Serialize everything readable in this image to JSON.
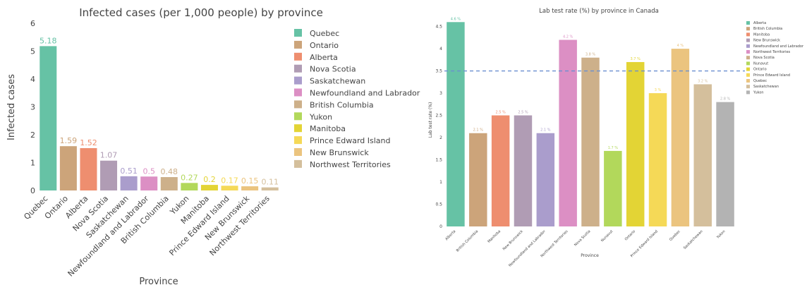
{
  "chart_data": [
    {
      "type": "bar",
      "title": "Infected cases (per 1,000 people) by province",
      "xlabel": "Province",
      "ylabel": "Infected cases",
      "ylim": [
        0,
        6
      ],
      "yticks": [
        "0",
        "1",
        "2",
        "3",
        "4",
        "5",
        "6"
      ],
      "grid": false,
      "legend_position": "right",
      "categories": [
        "Quebec",
        "Ontario",
        "Alberta",
        "Nova Scotia",
        "Saskatchewan",
        "Newfoundland and Labrador",
        "British Columbia",
        "Yukon",
        "Manitoba",
        "Prince Edward Island",
        "New Brunswick",
        "Northwest Territories"
      ],
      "values": [
        5.18,
        1.59,
        1.52,
        1.07,
        0.51,
        0.5,
        0.48,
        0.27,
        0.2,
        0.17,
        0.15,
        0.11
      ],
      "value_labels": [
        "5.18",
        "1.59",
        "1.52",
        "1.07",
        "0.51",
        "0.5",
        "0.48",
        "0.27",
        "0.2",
        "0.17",
        "0.15",
        "0.11"
      ],
      "colors": [
        "#66c2a5",
        "#cca47a",
        "#ee8e6f",
        "#b09cb4",
        "#aa9dcc",
        "#dc8fc4",
        "#cdb08a",
        "#b2d85b",
        "#e3d435",
        "#f5d957",
        "#ebc47f",
        "#d4bf9c"
      ],
      "legend": [
        "Quebec",
        "Ontario",
        "Alberta",
        "Nova Scotia",
        "Saskatchewan",
        "Newfoundland and Labrador",
        "British Columbia",
        "Yukon",
        "Manitoba",
        "Prince Edward Island",
        "New Brunswick",
        "Northwest Territories"
      ]
    },
    {
      "type": "bar",
      "title": "Lab test rate (%) by province in Canada",
      "xlabel": "Province",
      "ylabel": "Lab test rate (%)",
      "ylim": [
        0,
        4.7
      ],
      "yticks": [
        "0",
        "0.5",
        "1",
        "1.5",
        "2",
        "2.5",
        "3",
        "3.5",
        "4",
        "4.5"
      ],
      "grid": false,
      "legend_position": "right",
      "reference_line": 3.5,
      "categories": [
        "Alberta",
        "British Columbia",
        "Manitoba",
        "New Brunswick",
        "Newfoundland and Labrador",
        "Northwest Territories",
        "Nova Scotia",
        "Nunavut",
        "Ontario",
        "Prince Edward Island",
        "Quebec",
        "Saskatchewan",
        "Yukon"
      ],
      "values": [
        4.6,
        2.1,
        2.5,
        2.5,
        2.1,
        4.2,
        3.8,
        1.7,
        3.7,
        3.0,
        4.0,
        3.2,
        2.8
      ],
      "value_labels": [
        "4.6 %",
        "2.1 %",
        "2.5 %",
        "2.5 %",
        "2.1 %",
        "4.2 %",
        "3.8 %",
        "1.7 %",
        "3.7 %",
        "3 %",
        "4 %",
        "3.2 %",
        "2.8 %"
      ],
      "colors": [
        "#66c2a5",
        "#cca47a",
        "#ee8e6f",
        "#b09cb4",
        "#aa9dcc",
        "#dc8fc4",
        "#cdb08a",
        "#b2d85b",
        "#e3d435",
        "#f5d957",
        "#ebc47f",
        "#d4bf9c",
        "#b3b3b3"
      ],
      "legend": [
        "Alberta",
        "British Columbia",
        "Manitoba",
        "New Brunswick",
        "Newfoundland and Labrador",
        "Northwest Territories",
        "Nova Scotia",
        "Nunavut",
        "Ontario",
        "Prince Edward Island",
        "Quebec",
        "Saskatchewan",
        "Yukon"
      ]
    }
  ]
}
